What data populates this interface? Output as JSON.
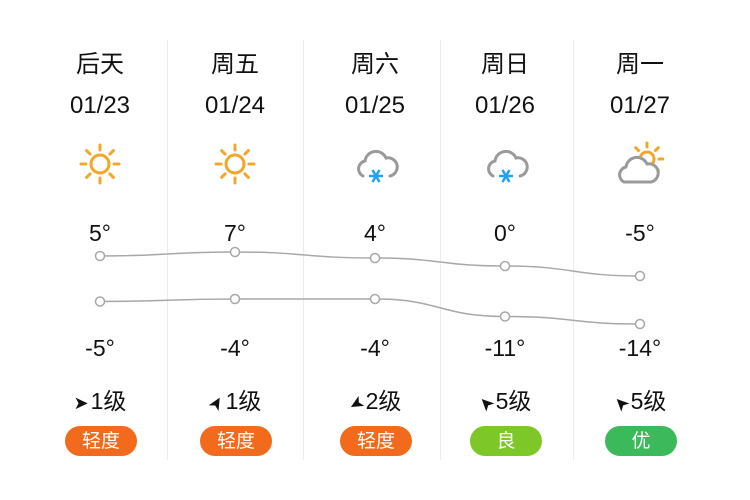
{
  "days": [
    {
      "day": "后天",
      "date": "01/23",
      "icon": "sun-icon",
      "high": "5°",
      "low": "-5°",
      "high_value": 5,
      "low_value": -5,
      "wind_level": "1级",
      "wind_dir_deg": 0,
      "aqi": "轻度",
      "aqi_color": "#f26b1d"
    },
    {
      "day": "周五",
      "date": "01/24",
      "icon": "sun-icon",
      "high": "7°",
      "low": "-4°",
      "high_value": 7,
      "low_value": -4,
      "wind_level": "1级",
      "wind_dir_deg": -60,
      "aqi": "轻度",
      "aqi_color": "#f26b1d"
    },
    {
      "day": "周六",
      "date": "01/25",
      "icon": "snow-cloud-icon",
      "high": "4°",
      "low": "-4°",
      "high_value": 4,
      "low_value": -4,
      "wind_level": "2级",
      "wind_dir_deg": 150,
      "aqi": "轻度",
      "aqi_color": "#f26b1d"
    },
    {
      "day": "周日",
      "date": "01/26",
      "icon": "snow-cloud-icon",
      "high": "0°",
      "low": "-11°",
      "high_value": 0,
      "low_value": -11,
      "wind_level": "5级",
      "wind_dir_deg": -135,
      "aqi": "良",
      "aqi_color": "#7ec729"
    },
    {
      "day": "周一",
      "date": "01/27",
      "icon": "partly-cloudy-icon",
      "high": "-5°",
      "low": "-14°",
      "high_value": -5,
      "low_value": -14,
      "wind_level": "5级",
      "wind_dir_deg": -135,
      "aqi": "优",
      "aqi_color": "#3cb95a"
    }
  ],
  "colors": {
    "sun": "#f4a62a",
    "cloud": "#9a9a9a",
    "snow": "#1fa3ef",
    "line": "#a8a8a8"
  }
}
